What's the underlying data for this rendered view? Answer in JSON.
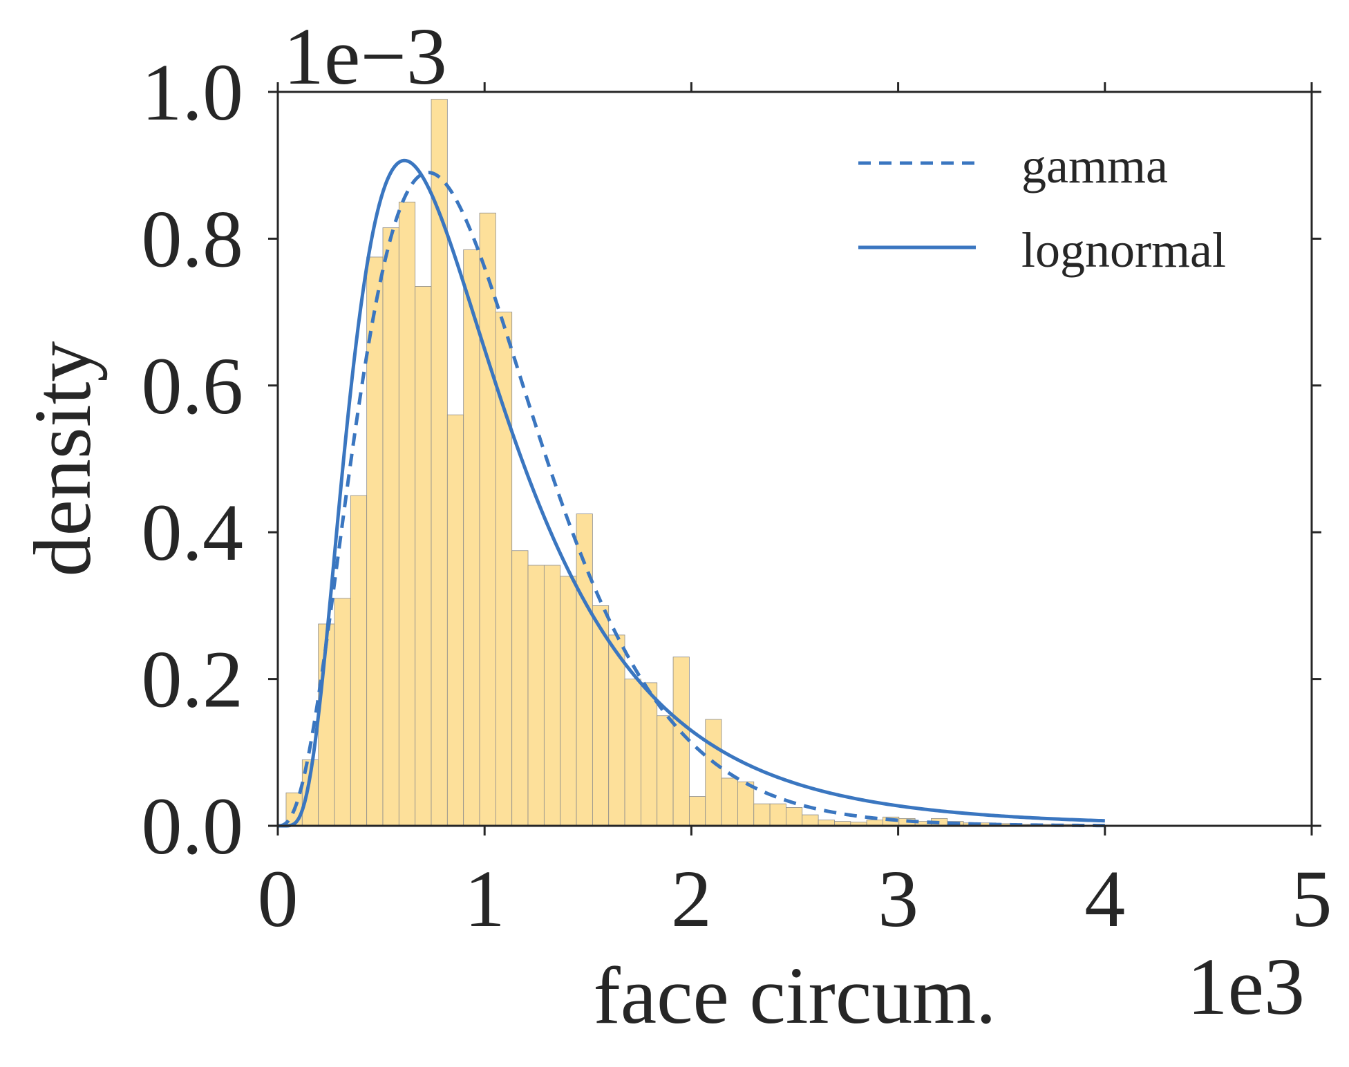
{
  "chart_data": {
    "type": "bar",
    "xlabel": "face circum.",
    "ylabel": "density",
    "x_multiplier": "1e3",
    "y_multiplier": "1e−3",
    "xlim": [
      0,
      5
    ],
    "ylim": [
      0,
      1.0
    ],
    "x_ticks": [
      "0",
      "1",
      "2",
      "3",
      "4",
      "5"
    ],
    "y_ticks": [
      "0.0",
      "0.2",
      "0.4",
      "0.6",
      "0.8",
      "1.0"
    ],
    "grid": false,
    "legend_position": "top-right",
    "histogram": {
      "bin_width": 0.078,
      "bin_starts": [
        0.04,
        0.118,
        0.196,
        0.274,
        0.352,
        0.43,
        0.508,
        0.586,
        0.664,
        0.742,
        0.82,
        0.898,
        0.976,
        1.054,
        1.132,
        1.21,
        1.288,
        1.366,
        1.444,
        1.522,
        1.6,
        1.678,
        1.756,
        1.834,
        1.912,
        1.99,
        2.068,
        2.146,
        2.224,
        2.302,
        2.38,
        2.458,
        2.536,
        2.614,
        2.692,
        2.77,
        2.848,
        2.926,
        3.004,
        3.082,
        3.16,
        3.238,
        3.316,
        3.394,
        3.472,
        3.55,
        3.628,
        3.706,
        3.784,
        3.862,
        3.94
      ],
      "density": [
        0.045,
        0.09,
        0.275,
        0.31,
        0.45,
        0.775,
        0.815,
        0.85,
        0.735,
        0.99,
        0.56,
        0.785,
        0.835,
        0.7,
        0.375,
        0.355,
        0.355,
        0.34,
        0.425,
        0.3,
        0.26,
        0.2,
        0.195,
        0.15,
        0.23,
        0.04,
        0.145,
        0.065,
        0.06,
        0.03,
        0.03,
        0.025,
        0.015,
        0.008,
        0.006,
        0.005,
        0.008,
        0.012,
        0.01,
        0.006,
        0.01,
        0.006,
        0.004,
        0.004,
        0.003,
        0.002,
        0.002,
        0.002,
        0.002,
        0.001,
        0.001
      ],
      "fill": "#fde09a",
      "edge": "#8c8c8c"
    },
    "series": [
      {
        "name": "gamma",
        "style": "dashed",
        "color": "#3a76c0"
      },
      {
        "name": "lognormal",
        "style": "solid",
        "color": "#3a76c0"
      }
    ],
    "fits": {
      "gamma": {
        "shape": 3.8,
        "scale": 0.26
      },
      "lognormal": {
        "mu": -0.13,
        "sigma": 0.6
      },
      "x_range": [
        0,
        4.0
      ]
    }
  }
}
